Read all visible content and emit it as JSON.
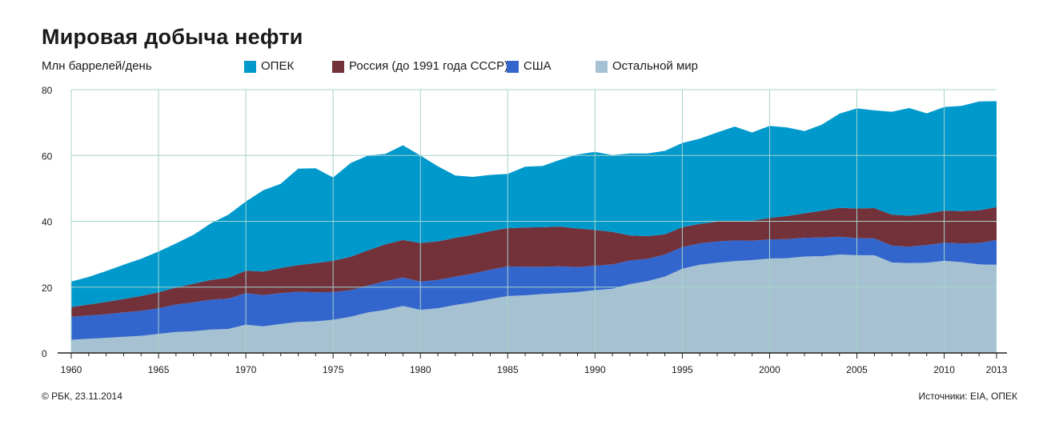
{
  "title": "Мировая добыча нефти",
  "unit_label": "Млн баррелей/день",
  "footer": {
    "copyright": "© РБК, 23.11.2014",
    "sources": "Источники: EIA, ОПЕК"
  },
  "colors": {
    "opec": "#0099cc",
    "russia": "#73313a",
    "usa": "#3366cc",
    "rest": "#a6c2d2",
    "grid": "#a5d3cc"
  },
  "chart_data": {
    "type": "area",
    "stacked": true,
    "title": "Мировая добыча нефти",
    "ylabel": "Млн баррелей/день",
    "ylim": [
      0,
      80
    ],
    "yticks": [
      0,
      20,
      40,
      60,
      80
    ],
    "xlim": [
      1960,
      2013
    ],
    "x_tick_labels": [
      "1960",
      "1965",
      "1970",
      "1975",
      "1980",
      "1985",
      "1990",
      "1995",
      "2000",
      "2005",
      "2010",
      "2013"
    ],
    "grid": true,
    "legend_position": "top",
    "x": [
      1960,
      1961,
      1962,
      1963,
      1964,
      1965,
      1966,
      1967,
      1968,
      1969,
      1970,
      1971,
      1972,
      1973,
      1974,
      1975,
      1976,
      1977,
      1978,
      1979,
      1980,
      1981,
      1982,
      1983,
      1984,
      1985,
      1986,
      1987,
      1988,
      1989,
      1990,
      1991,
      1992,
      1993,
      1994,
      1995,
      1996,
      1997,
      1998,
      1999,
      2000,
      2001,
      2002,
      2003,
      2004,
      2005,
      2006,
      2007,
      2008,
      2009,
      2010,
      2011,
      2012,
      2013
    ],
    "series": [
      {
        "name": "Остальной мир",
        "key": "rest",
        "values": [
          4.0,
          4.3,
          4.6,
          4.9,
          5.2,
          5.8,
          6.4,
          6.6,
          7.1,
          7.3,
          8.6,
          8.1,
          8.8,
          9.4,
          9.6,
          10.1,
          11.0,
          12.3,
          13.1,
          14.3,
          13.1,
          13.6,
          14.6,
          15.4,
          16.4,
          17.3,
          17.5,
          17.9,
          18.2,
          18.5,
          19.1,
          19.5,
          20.9,
          21.8,
          23.2,
          25.6,
          26.8,
          27.4,
          27.9,
          28.2,
          28.7,
          28.8,
          29.3,
          29.4,
          29.9,
          29.7,
          29.7,
          27.5,
          27.3,
          27.4,
          28.0,
          27.6,
          26.9,
          26.8
        ]
      },
      {
        "name": "США",
        "key": "usa",
        "values": [
          7.0,
          7.1,
          7.2,
          7.4,
          7.6,
          7.8,
          8.3,
          8.8,
          9.1,
          9.2,
          9.6,
          9.5,
          9.4,
          9.2,
          8.8,
          8.4,
          8.1,
          8.2,
          8.7,
          8.6,
          8.6,
          8.6,
          8.6,
          8.7,
          8.9,
          9.0,
          8.7,
          8.3,
          8.1,
          7.6,
          7.4,
          7.4,
          7.2,
          6.8,
          6.7,
          6.6,
          6.5,
          6.5,
          6.3,
          5.9,
          5.8,
          5.8,
          5.7,
          5.7,
          5.4,
          5.2,
          5.1,
          5.1,
          5.0,
          5.4,
          5.5,
          5.7,
          6.5,
          7.5
        ]
      },
      {
        "name": "Россия (до 1991 года СССР)",
        "key": "russia",
        "values": [
          2.9,
          3.3,
          3.7,
          4.1,
          4.5,
          4.8,
          5.2,
          5.6,
          6.0,
          6.3,
          6.8,
          7.1,
          7.6,
          8.1,
          8.9,
          9.5,
          10.1,
          10.7,
          11.2,
          11.4,
          11.7,
          11.7,
          11.8,
          11.8,
          11.7,
          11.6,
          11.9,
          12.0,
          12.1,
          11.7,
          10.9,
          9.9,
          7.6,
          6.9,
          6.1,
          6.0,
          5.9,
          6.0,
          5.8,
          6.1,
          6.5,
          7.0,
          7.4,
          8.1,
          8.8,
          9.0,
          9.2,
          9.4,
          9.4,
          9.5,
          9.7,
          9.8,
          9.9,
          10.0
        ]
      },
      {
        "name": "ОПЕК",
        "key": "opec",
        "values": [
          7.8,
          8.4,
          9.4,
          10.4,
          11.3,
          12.4,
          13.4,
          14.9,
          17.2,
          19.2,
          21.0,
          24.7,
          25.6,
          29.3,
          28.8,
          25.3,
          28.5,
          28.8,
          27.5,
          28.8,
          26.6,
          22.8,
          18.9,
          17.6,
          17.1,
          16.5,
          18.5,
          18.6,
          20.3,
          22.5,
          23.7,
          23.3,
          24.9,
          25.1,
          25.4,
          25.6,
          25.9,
          27.1,
          28.8,
          26.8,
          28.0,
          26.9,
          25.0,
          26.2,
          28.6,
          30.4,
          29.7,
          31.3,
          32.7,
          30.5,
          31.5,
          32.0,
          33.1,
          32.2
        ]
      }
    ]
  }
}
